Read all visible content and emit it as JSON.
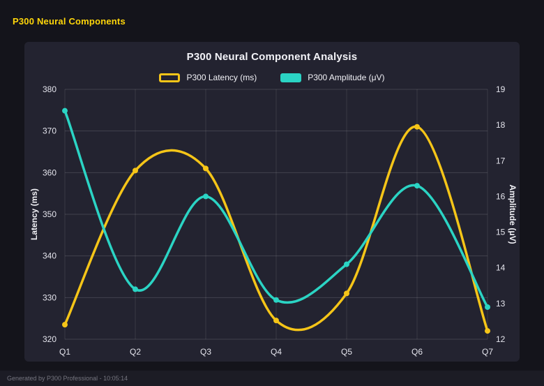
{
  "page": {
    "title": "P300 Neural Components",
    "footer": "Generated by P300 Professional - 10:05:14"
  },
  "chart_data": {
    "type": "line",
    "title": "P300 Neural Component Analysis",
    "categories": [
      "Q1",
      "Q2",
      "Q3",
      "Q4",
      "Q5",
      "Q6",
      "Q7"
    ],
    "series": [
      {
        "name": "P300 Latency (ms)",
        "axis": "left",
        "color": "#f5c518",
        "values": [
          323.5,
          360.5,
          361,
          324.5,
          331,
          371,
          322
        ]
      },
      {
        "name": "P300 Amplitude (μV)",
        "axis": "right",
        "color": "#2bd4c4",
        "values": [
          18.4,
          13.4,
          16.0,
          13.1,
          14.1,
          16.3,
          12.9
        ]
      }
    ],
    "axes": {
      "left": {
        "label": "Latency (ms)",
        "min": 320,
        "max": 380,
        "step": 10
      },
      "right": {
        "label": "Amplitude (μV)",
        "min": 12,
        "max": 19,
        "step": 1
      }
    },
    "grid": true,
    "smooth": true,
    "legend_position": "top"
  },
  "colors": {
    "page_bg": "#14141b",
    "card_bg": "#232330",
    "text": "#f2f2f7",
    "tick_text": "#e4e4ec",
    "grid": "rgba(255,255,255,0.14)",
    "grid_v": "rgba(255,255,255,0.10)",
    "accent_yellow": "#ffd60a",
    "footer_bg": "#1c1c25",
    "footer_text": "#75757f"
  }
}
